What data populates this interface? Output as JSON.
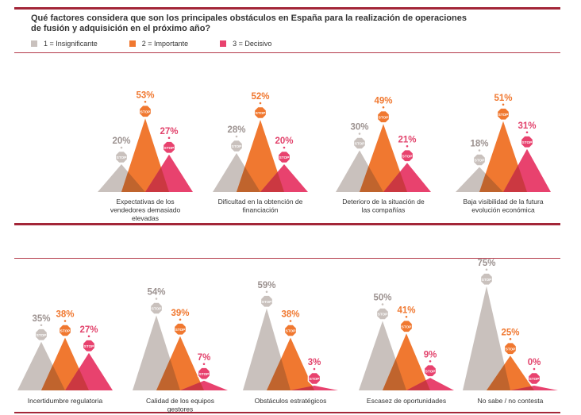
{
  "title": "Qué factores considera que son los principales obstáculos en España para la realización de operaciones de fusión y adquisición en el próximo año?",
  "legend": [
    {
      "label": "1 = Insignificante",
      "color": "#c9c1bd"
    },
    {
      "label": "2 = Importante",
      "color": "#f07830"
    },
    {
      "label": "3 = Decisivo",
      "color": "#e8426e"
    }
  ],
  "stop_label": "STOP",
  "colors": {
    "grey": "#c9c1bd",
    "orange": "#f07830",
    "pink": "#e8426e",
    "overlap_go": "#b7602d",
    "overlap_op": "#c5363a",
    "overlap_gp": "#b86a7d",
    "rule": "#a32638",
    "grey_text": "#9c9290",
    "orange_text": "#f07830",
    "pink_text": "#e2436c"
  },
  "chart_data": {
    "type": "bar",
    "title": "Qué factores considera que son los principales obstáculos en España para la realización de operaciones de fusión y adquisición en el próximo año?",
    "unit": "%",
    "ylim": [
      0,
      100
    ],
    "series": [
      {
        "name": "1 = Insignificante",
        "values": [
          20,
          28,
          30,
          18,
          35,
          54,
          59,
          50,
          75
        ]
      },
      {
        "name": "2 = Importante",
        "values": [
          53,
          52,
          49,
          51,
          38,
          39,
          38,
          41,
          25
        ]
      },
      {
        "name": "3 = Decisivo",
        "values": [
          27,
          20,
          21,
          31,
          27,
          7,
          3,
          9,
          0
        ]
      }
    ],
    "categories": [
      [
        "Expectativas de los",
        "vendedores demasiado",
        "elevadas"
      ],
      [
        "Dificultad en la obtención de",
        "financiación"
      ],
      [
        "Deterioro de la situación de",
        "las compañías"
      ],
      [
        "Baja visibilidad de la futura",
        "evolución económica"
      ],
      [
        "Incertidumbre regulatoria"
      ],
      [
        "Calidad de los equipos",
        "gestores"
      ],
      [
        "Obstáculos estratégicos"
      ],
      [
        "Escasez de oportunidades"
      ],
      [
        "No sabe / no contesta"
      ]
    ],
    "value_labels": [
      [
        "20%",
        "53%",
        "27%"
      ],
      [
        "28%",
        "52%",
        "20%"
      ],
      [
        "30%",
        "49%",
        "21%"
      ],
      [
        "18%",
        "51%",
        "31%"
      ],
      [
        "35%",
        "38%",
        "27%"
      ],
      [
        "54%",
        "39%",
        "7%"
      ],
      [
        "59%",
        "38%",
        "3%"
      ],
      [
        "50%",
        "41%",
        "9%"
      ],
      [
        "75%",
        "25%",
        "0%"
      ]
    ]
  }
}
